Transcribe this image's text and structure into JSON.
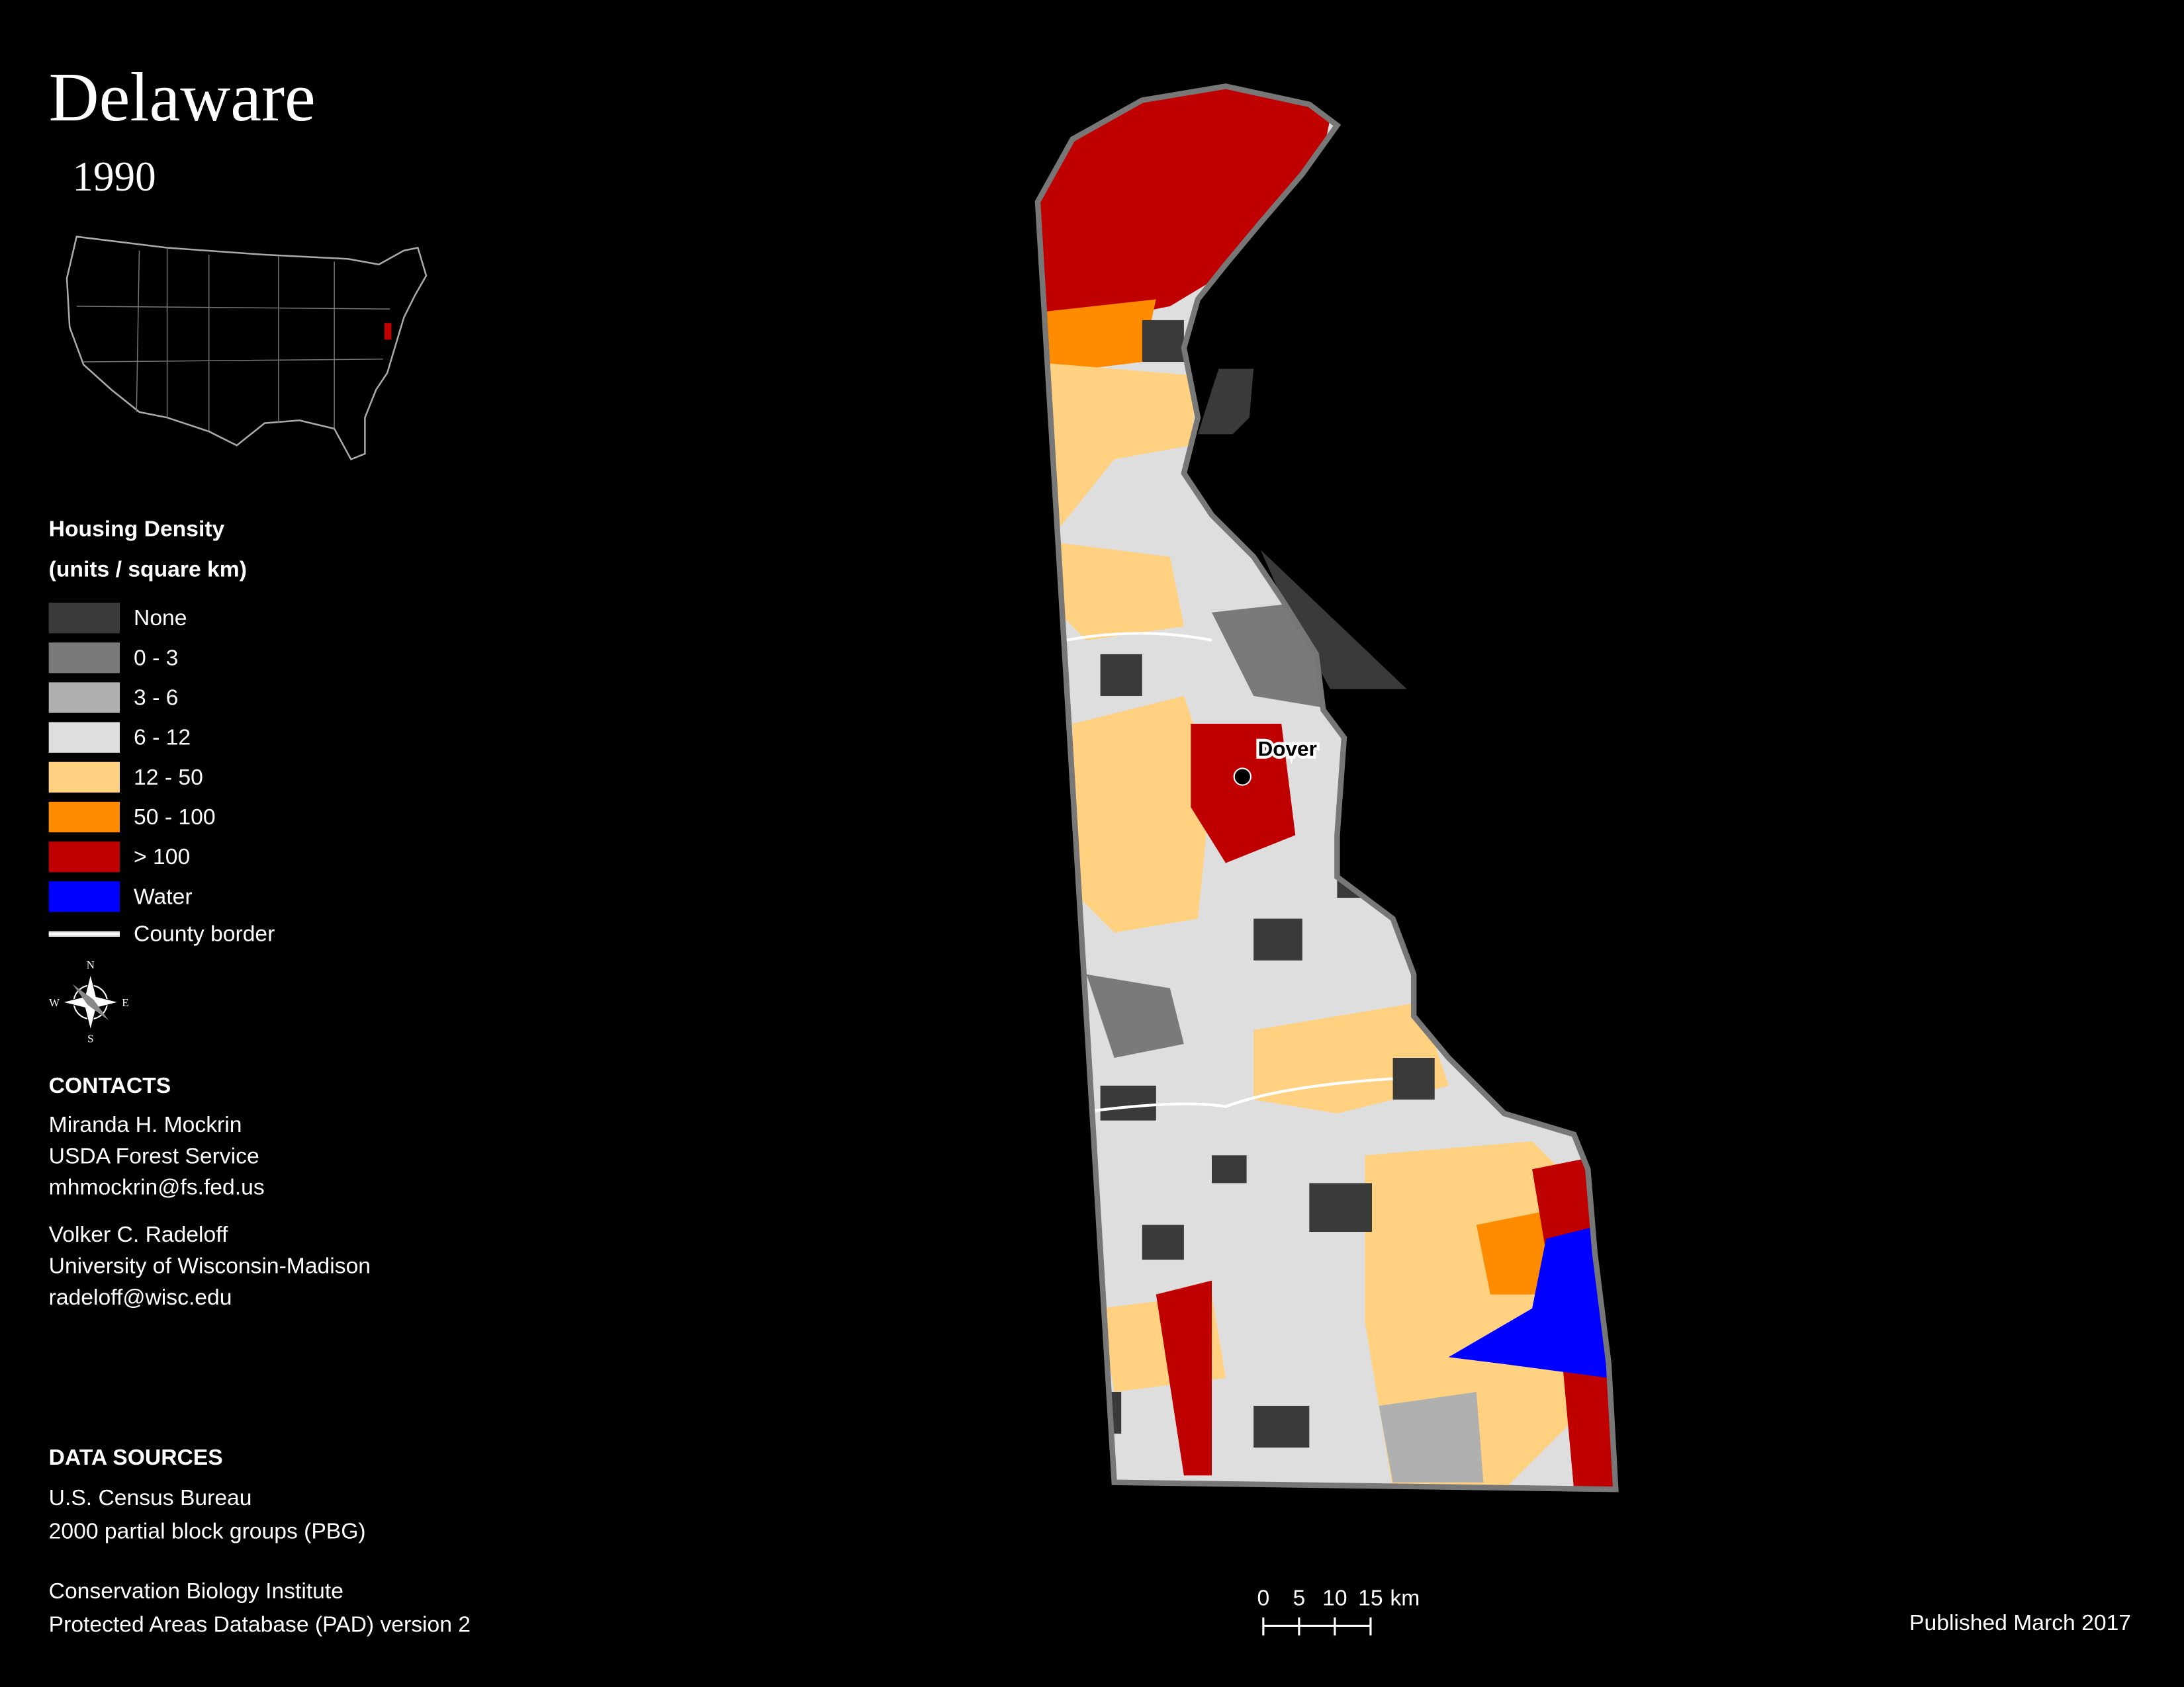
{
  "header": {
    "title": "Delaware",
    "year": "1990"
  },
  "legend": {
    "title": "Housing Density",
    "subtitle": "(units / square km)",
    "items": [
      {
        "label": "None",
        "color": "#3a3a3a"
      },
      {
        "label": "0 - 3",
        "color": "#7a7a7a"
      },
      {
        "label": "3 - 6",
        "color": "#b0b0b0"
      },
      {
        "label": "6 - 12",
        "color": "#dedede"
      },
      {
        "label": "12 - 50",
        "color": "#ffd180"
      },
      {
        "label": "50 - 100",
        "color": "#ff8c00"
      },
      {
        "label": "> 100",
        "color": "#c00000"
      },
      {
        "label": "Water",
        "color": "#0000ff"
      }
    ],
    "border_label": "County border"
  },
  "compass": {
    "n": "N",
    "s": "S",
    "e": "E",
    "w": "W"
  },
  "contacts": {
    "title": "CONTACTS",
    "people": [
      [
        "Miranda H. Mockrin",
        "USDA Forest Service",
        "mhmockrin@fs.fed.us"
      ],
      [
        "Volker C. Radeloff",
        "University of Wisconsin-Madison",
        "radeloff@wisc.edu"
      ]
    ]
  },
  "sources": {
    "title": "DATA SOURCES",
    "lines": [
      [
        "U.S. Census Bureau",
        "2000 partial block groups (PBG)"
      ],
      [
        "Conservation Biology Institute",
        "Protected Areas Database (PAD) version 2"
      ]
    ]
  },
  "map": {
    "city": "Dover"
  },
  "scale_bar": {
    "ticks": [
      0,
      5,
      10,
      15
    ],
    "unit": "km"
  },
  "published": "Published March 2017"
}
